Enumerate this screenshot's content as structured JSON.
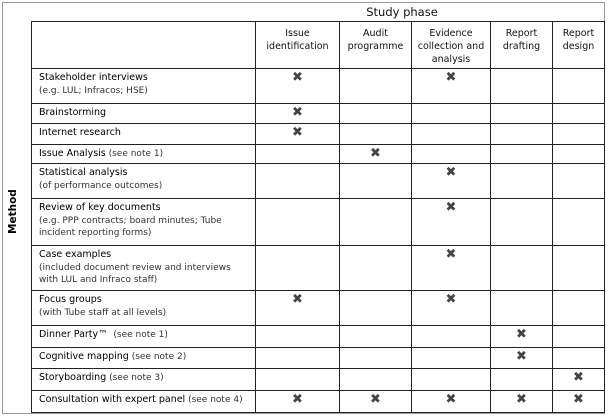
{
  "header": {
    "phase_label": "Study phase",
    "method_label": "Method"
  },
  "columns": [
    "Issue identification",
    "Audit programme",
    "Evidence collection and analysis",
    "Report drafting",
    "Report design"
  ],
  "mark_glyph": "✖",
  "rows": [
    {
      "title": "Stakeholder interviews",
      "sub": "(e.g. LUL; Infracos; HSE)",
      "marks": [
        1,
        0,
        1,
        0,
        0
      ]
    },
    {
      "title": "Brainstorming",
      "sub": "",
      "marks": [
        1,
        0,
        0,
        0,
        0
      ]
    },
    {
      "title": "Internet research",
      "sub": "",
      "marks": [
        1,
        0,
        0,
        0,
        0
      ]
    },
    {
      "title": "Issue Analysis",
      "sub": " (see note 1)",
      "marks": [
        0,
        1,
        0,
        0,
        0
      ]
    },
    {
      "title": "Statistical analysis",
      "sub": "(of performance outcomes)",
      "marks": [
        0,
        0,
        1,
        0,
        0
      ]
    },
    {
      "title": "Review of key documents",
      "sub": "(e.g. PPP contracts; board minutes; Tube incident reporting forms)",
      "marks": [
        0,
        0,
        1,
        0,
        0
      ]
    },
    {
      "title": "Case examples",
      "sub": "(included document review and interviews with LUL and Infraco staff)",
      "marks": [
        0,
        0,
        1,
        0,
        0
      ]
    },
    {
      "title": "Focus groups",
      "sub": "(with Tube staff at all levels)",
      "marks": [
        1,
        0,
        1,
        0,
        0
      ]
    },
    {
      "title": "Dinner Party™",
      "sub": "  (see note 1)",
      "marks": [
        0,
        0,
        0,
        1,
        0
      ]
    },
    {
      "title": "Cognitive mapping",
      "sub": " (see note 2)",
      "marks": [
        0,
        0,
        0,
        1,
        0
      ]
    },
    {
      "title": "Storyboarding",
      "sub": " (see note 3)",
      "marks": [
        0,
        0,
        0,
        0,
        1
      ]
    },
    {
      "title": "Consultation with expert panel",
      "sub": " (see note 4)",
      "marks": [
        1,
        1,
        1,
        1,
        1
      ]
    }
  ]
}
